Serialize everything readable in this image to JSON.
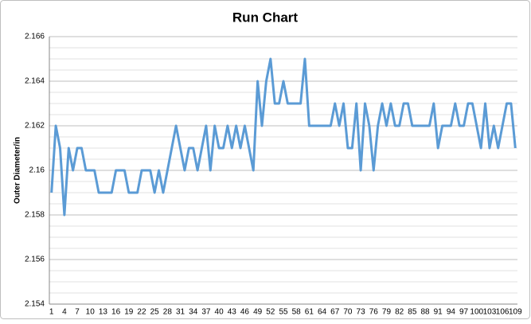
{
  "chart_data": {
    "type": "line",
    "title": "Run Chart",
    "y_label": "Outer Diameter/in",
    "categories": [
      1,
      null,
      null,
      4,
      null,
      null,
      7,
      null,
      null,
      10,
      null,
      null,
      13,
      null,
      null,
      16,
      null,
      null,
      19,
      null,
      null,
      22,
      null,
      null,
      25,
      null,
      null,
      28,
      null,
      null,
      31,
      null,
      null,
      34,
      null,
      null,
      37,
      null,
      null,
      40,
      null,
      null,
      43,
      null,
      null,
      46,
      null,
      null,
      49,
      null,
      null,
      52,
      null,
      null,
      55,
      null,
      null,
      58,
      null,
      null,
      61,
      null,
      null,
      64,
      null,
      null,
      67,
      null,
      null,
      70,
      null,
      null,
      73,
      null,
      null,
      76,
      null,
      null,
      79,
      null,
      null,
      82,
      null,
      null,
      85,
      null,
      null,
      88,
      null,
      null,
      91,
      null,
      null,
      94,
      null,
      null,
      97,
      null,
      null,
      100,
      null,
      null,
      103,
      null,
      null,
      106,
      null,
      null,
      109
    ],
    "series": [
      {
        "color": "#5b9bd5",
        "values": [
          2.159,
          2.162,
          2.161,
          2.158,
          2.161,
          2.16,
          2.161,
          2.161,
          2.16,
          2.16,
          2.16,
          2.159,
          2.159,
          2.159,
          2.159,
          2.16,
          2.16,
          2.16,
          2.159,
          2.159,
          2.159,
          2.16,
          2.16,
          2.16,
          2.159,
          2.16,
          2.159,
          2.16,
          2.161,
          2.162,
          2.161,
          2.16,
          2.161,
          2.161,
          2.16,
          2.161,
          2.162,
          2.16,
          2.162,
          2.161,
          2.161,
          2.162,
          2.161,
          2.162,
          2.161,
          2.162,
          2.161,
          2.16,
          2.164,
          2.162,
          2.164,
          2.165,
          2.163,
          2.163,
          2.164,
          2.163,
          2.163,
          2.163,
          2.163,
          2.165,
          2.162,
          2.162,
          2.162,
          2.162,
          2.162,
          2.162,
          2.163,
          2.162,
          2.163,
          2.161,
          2.161,
          2.163,
          2.16,
          2.163,
          2.162,
          2.16,
          2.162,
          2.163,
          2.162,
          2.163,
          2.162,
          2.162,
          2.163,
          2.163,
          2.162,
          2.162,
          2.162,
          2.162,
          2.162,
          2.163,
          2.161,
          2.162,
          2.162,
          2.162,
          2.163,
          2.162,
          2.162,
          2.163,
          2.163,
          2.162,
          2.161,
          2.163,
          2.161,
          2.162,
          2.161,
          2.162,
          2.163,
          2.163,
          2.161
        ]
      }
    ],
    "ylim": [
      2.154,
      2.166
    ],
    "yticks": [
      2.154,
      2.156,
      2.158,
      2.16,
      2.162,
      2.164,
      2.166
    ],
    "minor_yticks": [
      2.1545,
      2.155,
      2.1555,
      2.1565,
      2.157,
      2.1575,
      2.1585,
      2.159,
      2.1595,
      2.1605,
      2.161,
      2.1615,
      2.1625,
      2.163,
      2.1635,
      2.1645,
      2.165,
      2.1655
    ],
    "grid": true
  }
}
